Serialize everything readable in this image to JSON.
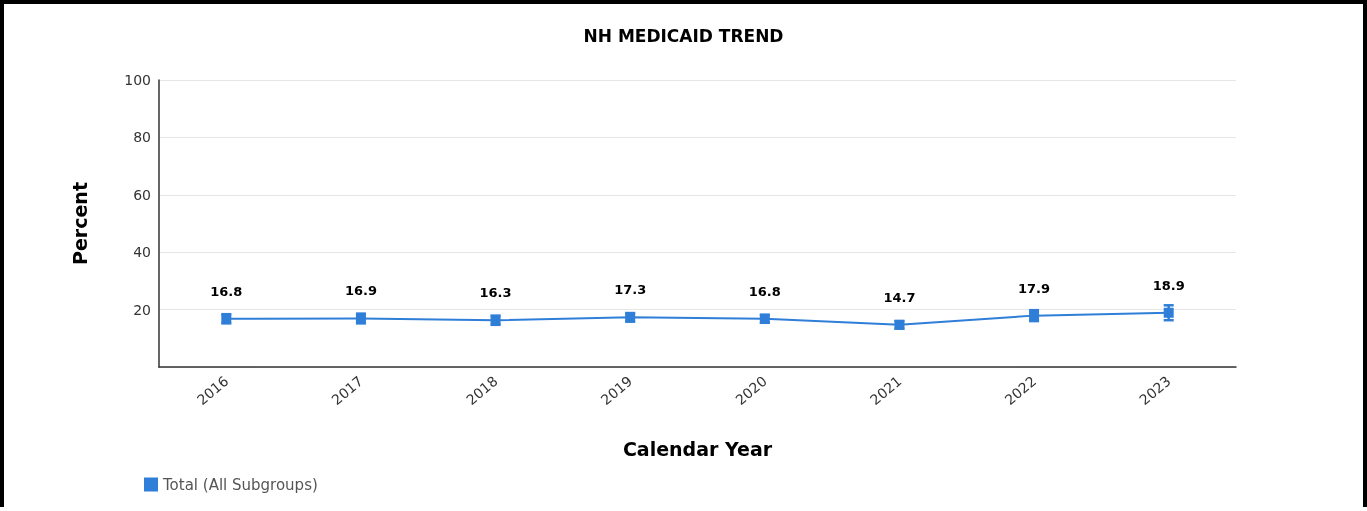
{
  "chart_data": {
    "type": "line",
    "title": "NH MEDICAID TREND",
    "xlabel": "Calendar Year",
    "ylabel": "Percent",
    "categories": [
      "2016",
      "2017",
      "2018",
      "2019",
      "2020",
      "2021",
      "2022",
      "2023"
    ],
    "series": [
      {
        "name": "Total (All Subgroups)",
        "color": "#2f7ed8",
        "values": [
          16.8,
          16.9,
          16.3,
          17.3,
          16.8,
          14.7,
          17.9,
          18.9
        ],
        "errors": [
          1.6,
          1.7,
          1.6,
          1.5,
          1.4,
          1.3,
          1.9,
          2.6
        ]
      }
    ],
    "ylim": [
      0,
      100
    ],
    "yticks": [
      {
        "value": 0,
        "label": null
      },
      20,
      40,
      60,
      80,
      100
    ],
    "grid": "y",
    "legend": "bottom left",
    "marker": "square",
    "line_style": "solid",
    "data_labels": true
  }
}
